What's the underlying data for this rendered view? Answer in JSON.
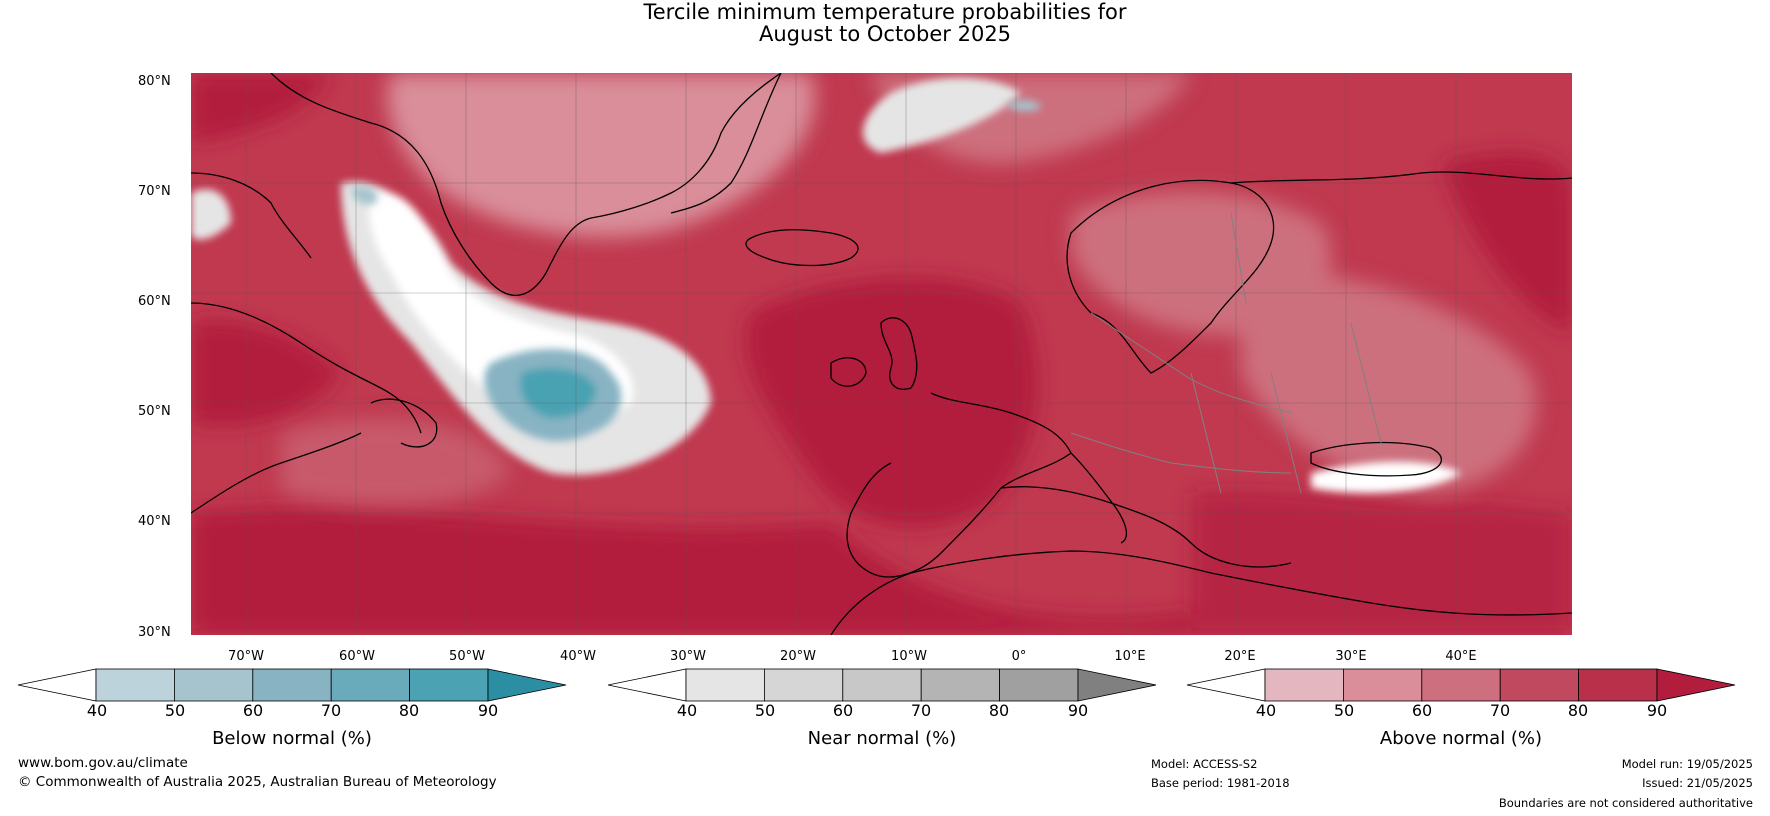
{
  "title_line1": "Tercile minimum temperature probabilities for",
  "title_line2": "August to October 2025",
  "map": {
    "latitude_labels": [
      "80°N",
      "70°N",
      "60°N",
      "50°N",
      "40°N",
      "30°N"
    ],
    "longitude_labels": [
      "70°W",
      "60°W",
      "50°W",
      "40°W",
      "30°W",
      "20°W",
      "10°W",
      "0°",
      "10°E",
      "20°E",
      "30°E",
      "40°E"
    ],
    "ocean_base_color": "#c0394f",
    "coastline_color": "#000000",
    "border_color": "#808080"
  },
  "legends": [
    {
      "title": "Below normal (%)",
      "ticks": [
        "40",
        "50",
        "60",
        "70",
        "80",
        "90"
      ],
      "colors": [
        "#ffffff",
        "#bcd3db",
        "#a6c4cd",
        "#88b3c3",
        "#6aabbb",
        "#4aa2b2",
        "#2c8ea3"
      ]
    },
    {
      "title": "Near normal (%)",
      "ticks": [
        "40",
        "50",
        "60",
        "70",
        "80",
        "90"
      ],
      "colors": [
        "#ffffff",
        "#e5e5e5",
        "#d6d6d6",
        "#c8c8c8",
        "#b4b4b4",
        "#a0a0a0",
        "#808080"
      ]
    },
    {
      "title": "Above normal (%)",
      "ticks": [
        "40",
        "50",
        "60",
        "70",
        "80",
        "90"
      ],
      "colors": [
        "#ffffff",
        "#e4b6bf",
        "#d98e9a",
        "#cd6f7e",
        "#c1495f",
        "#b8304a",
        "#b21d3e"
      ]
    }
  ],
  "footer": {
    "website": "www.bom.gov.au/climate",
    "copyright": "© Commonwealth of Australia 2025, Australian Bureau of Meteorology",
    "model": "Model: ACCESS-S2",
    "base_period": "Base period: 1981-2018",
    "model_run": "Model run: 19/05/2025",
    "issued": "Issued: 21/05/2025",
    "disclaimer": "Boundaries are not considered authoritative"
  }
}
